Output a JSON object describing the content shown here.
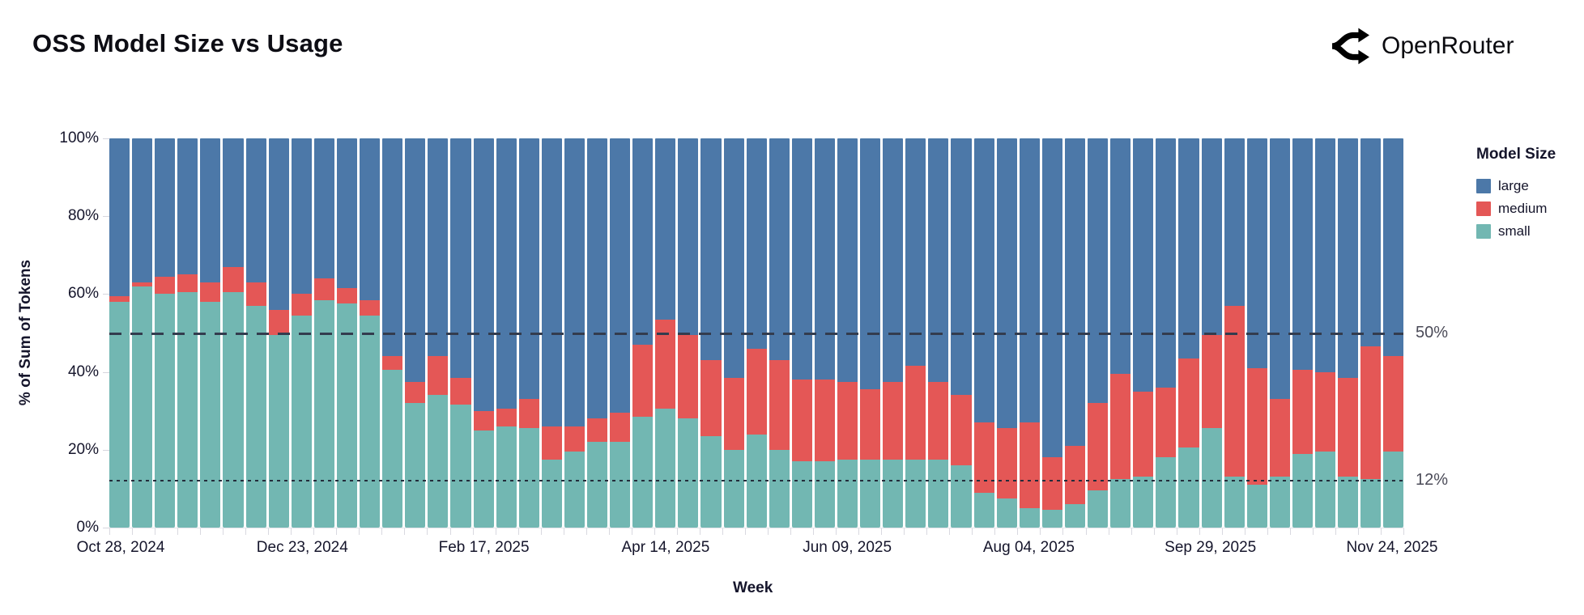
{
  "header": {
    "title": "OSS Model Size vs Usage",
    "brand": "OpenRouter"
  },
  "chart_data": {
    "type": "bar",
    "variant": "stacked-normalized-100",
    "title": "OSS Model Size vs Usage",
    "xlabel": "Week",
    "ylabel": "% of Sum of Tokens",
    "ylim": [
      0,
      100
    ],
    "grid": false,
    "y_tick_labels": [
      "0%",
      "20%",
      "40%",
      "60%",
      "80%",
      "100%"
    ],
    "x_major_tick_indices": [
      0,
      8,
      16,
      24,
      32,
      40,
      48,
      56
    ],
    "x_major_tick_labels": [
      "Oct 28, 2024",
      "Dec 23, 2024",
      "Feb 17, 2025",
      "Apr 14, 2025",
      "Jun 09, 2025",
      "Aug 04, 2025",
      "Sep 29, 2025",
      "Nov 24, 2025"
    ],
    "legend": {
      "title": "Model Size",
      "position": "right",
      "entries": [
        {
          "label": "large",
          "color": "#4c78a8"
        },
        {
          "label": "medium",
          "color": "#e45756"
        },
        {
          "label": "small",
          "color": "#72b7b2"
        }
      ]
    },
    "reference_lines": [
      {
        "value": 50,
        "label": "50%",
        "style": "dashed"
      },
      {
        "value": 12,
        "label": "12%",
        "style": "dotted"
      }
    ],
    "categories": [
      "Oct 28, 2024",
      "Nov 04, 2024",
      "Nov 11, 2024",
      "Nov 18, 2024",
      "Nov 25, 2024",
      "Dec 02, 2024",
      "Dec 09, 2024",
      "Dec 16, 2024",
      "Dec 23, 2024",
      "Dec 30, 2024",
      "Jan 06, 2025",
      "Jan 13, 2025",
      "Jan 20, 2025",
      "Jan 27, 2025",
      "Feb 03, 2025",
      "Feb 10, 2025",
      "Feb 17, 2025",
      "Feb 24, 2025",
      "Mar 03, 2025",
      "Mar 10, 2025",
      "Mar 17, 2025",
      "Mar 24, 2025",
      "Mar 31, 2025",
      "Apr 07, 2025",
      "Apr 14, 2025",
      "Apr 21, 2025",
      "Apr 28, 2025",
      "May 05, 2025",
      "May 12, 2025",
      "May 19, 2025",
      "May 26, 2025",
      "Jun 02, 2025",
      "Jun 09, 2025",
      "Jun 16, 2025",
      "Jun 23, 2025",
      "Jun 30, 2025",
      "Jul 07, 2025",
      "Jul 14, 2025",
      "Jul 21, 2025",
      "Jul 28, 2025",
      "Aug 04, 2025",
      "Aug 11, 2025",
      "Aug 18, 2025",
      "Aug 25, 2025",
      "Sep 01, 2025",
      "Sep 08, 2025",
      "Sep 15, 2025",
      "Sep 22, 2025",
      "Sep 29, 2025",
      "Oct 06, 2025",
      "Oct 13, 2025",
      "Oct 20, 2025",
      "Oct 27, 2025",
      "Nov 03, 2025",
      "Nov 10, 2025",
      "Nov 17, 2025",
      "Nov 24, 2025"
    ],
    "series": [
      {
        "name": "small",
        "color": "#72b7b2",
        "values": [
          58,
          62,
          60,
          60.5,
          58,
          60.5,
          57,
          49.5,
          54.5,
          58.5,
          57.5,
          54.5,
          40.5,
          32,
          34,
          31.5,
          25,
          26,
          25.5,
          17.5,
          19.5,
          22,
          22,
          28.5,
          30.5,
          28,
          23.5,
          20,
          24,
          20,
          17,
          17,
          17.5,
          17.5,
          17.5,
          17.5,
          17.5,
          16,
          9,
          7.5,
          5,
          4.5,
          6,
          9.5,
          12.5,
          13,
          18,
          20.5,
          25.5,
          13,
          11,
          13,
          19,
          19.5,
          13,
          12.5,
          19.5
        ]
      },
      {
        "name": "medium",
        "color": "#e45756",
        "values": [
          1.5,
          1,
          4.5,
          4.5,
          5,
          6.5,
          6,
          6.5,
          5.5,
          5.5,
          4,
          4,
          3.5,
          5.5,
          10,
          7,
          5,
          4.5,
          7.5,
          8.5,
          6.5,
          6,
          7.5,
          18.5,
          23,
          21.5,
          19.5,
          18.5,
          22,
          23,
          21,
          21,
          20,
          18,
          20,
          24,
          20,
          18,
          18,
          18,
          22,
          13.5,
          15,
          22.5,
          27,
          22,
          18,
          23,
          24,
          44,
          30,
          20,
          21.5,
          20.5,
          25.5,
          34,
          24.5
        ]
      },
      {
        "name": "large",
        "color": "#4c78a8",
        "values": [
          40.5,
          37,
          35.5,
          35,
          37,
          33,
          37,
          44,
          40,
          36,
          38.5,
          41.5,
          56,
          62.5,
          56,
          61.5,
          70,
          69.5,
          67,
          74,
          74,
          72,
          70.5,
          53,
          46.5,
          50.5,
          57,
          61.5,
          54,
          57,
          62,
          62,
          62.5,
          64.5,
          62.5,
          58.5,
          62.5,
          66,
          73,
          74.5,
          73,
          82,
          79,
          68,
          60.5,
          65,
          64,
          56.5,
          50.5,
          43,
          59,
          67,
          59.5,
          60,
          61.5,
          53.5,
          56
        ]
      }
    ]
  }
}
